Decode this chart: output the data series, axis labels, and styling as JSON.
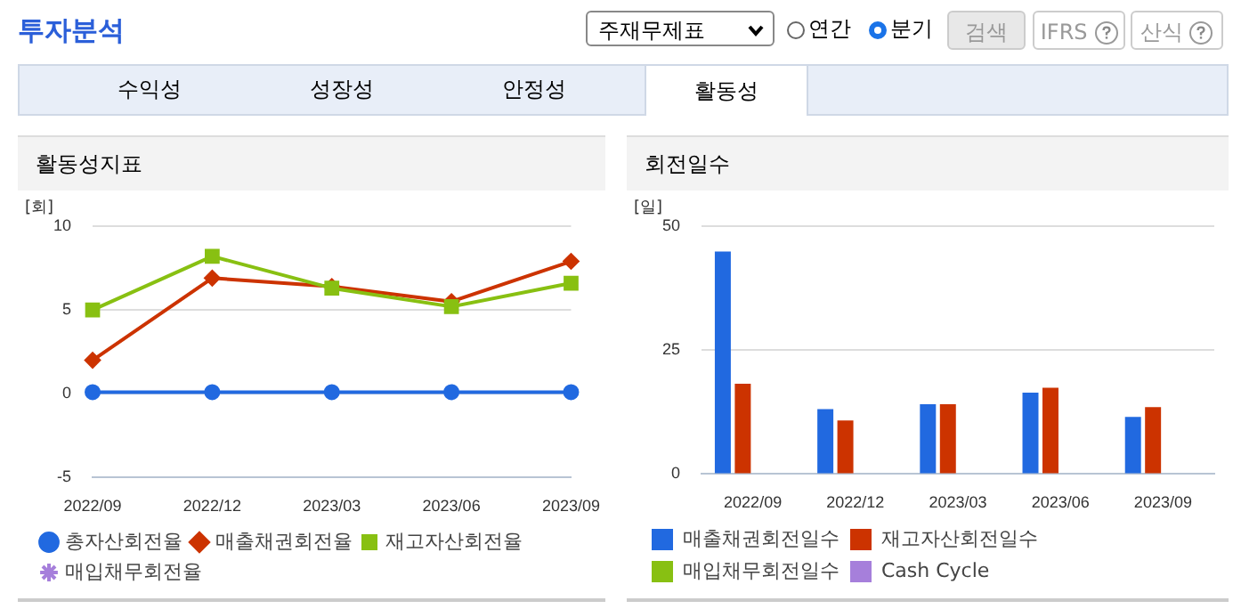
{
  "chart_data": [
    {
      "type": "other",
      "title": "투자분석",
      "annotations": [
        "주재무제표",
        "연간",
        "분기",
        "검색",
        "IFRS",
        "산식",
        "수익성",
        "성장성",
        "안정성",
        "활동성"
      ]
    },
    {
      "type": "line",
      "title": "활동성지표",
      "ylabel": "[회]",
      "categories": [
        "2022/09",
        "2022/12",
        "2023/03",
        "2023/06",
        "2023/09"
      ],
      "ylim": [
        -5,
        10
      ],
      "yticks": [
        -5,
        0,
        5,
        10
      ],
      "grid": "y",
      "legend": "bottom",
      "series": [
        {
          "name": "총자산회전율",
          "color": "#2169e0",
          "marker": "circle",
          "values": [
            0.1,
            0.1,
            0.1,
            0.1,
            0.1
          ]
        },
        {
          "name": "매출채권회전율",
          "color": "#cc3300",
          "marker": "diamond",
          "values": [
            2.0,
            6.9,
            6.4,
            5.5,
            7.9
          ]
        },
        {
          "name": "재고자산회전율",
          "color": "#88c012",
          "marker": "square",
          "values": [
            5.0,
            8.2,
            6.3,
            5.2,
            6.6
          ]
        },
        {
          "name": "매입채무회전율",
          "color": "#a67fdb",
          "marker": "star",
          "values": [
            null,
            null,
            null,
            null,
            null
          ]
        }
      ]
    },
    {
      "type": "bar",
      "title": "회전일수",
      "ylabel": "[일]",
      "categories": [
        "2022/09",
        "2022/12",
        "2023/03",
        "2023/06",
        "2023/09"
      ],
      "ylim": [
        0,
        50
      ],
      "yticks": [
        0,
        25,
        50
      ],
      "grid": "y",
      "legend": "bottom",
      "series": [
        {
          "name": "매출채권회전일수",
          "color": "#2169e0",
          "values": [
            44.9,
            13.1,
            14.1,
            16.4,
            11.5
          ]
        },
        {
          "name": "재고자산회전일수",
          "color": "#cc3300",
          "values": [
            18.2,
            10.8,
            14.1,
            17.4,
            13.5
          ]
        },
        {
          "name": "매입채무회전일수",
          "color": "#88c012",
          "values": [
            null,
            null,
            null,
            null,
            null
          ]
        },
        {
          "name": "Cash Cycle",
          "color": "#a67fdb",
          "values": [
            null,
            null,
            null,
            null,
            null
          ]
        }
      ]
    }
  ]
}
